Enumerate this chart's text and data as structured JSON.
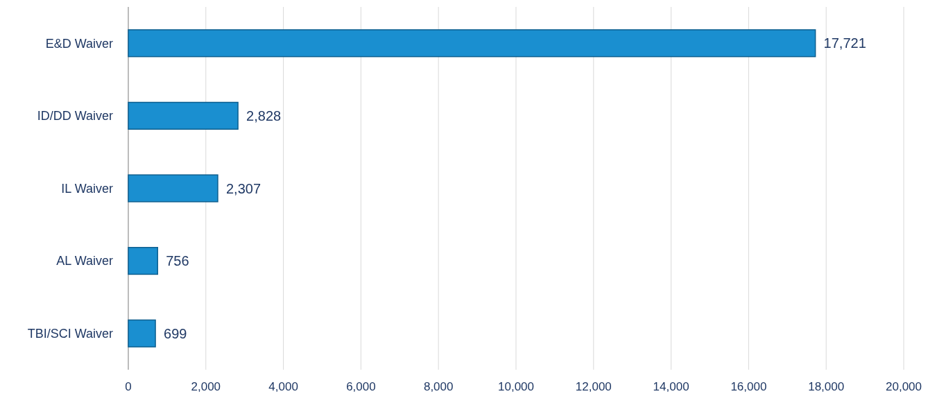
{
  "chart_data": {
    "type": "bar",
    "orientation": "horizontal",
    "categories": [
      "E&D Waiver",
      "ID/DD Waiver",
      "IL Waiver",
      "AL Waiver",
      "TBI/SCI Waiver"
    ],
    "values": [
      17721,
      2828,
      2307,
      756,
      699
    ],
    "color": "#1a8fd0",
    "xlim": [
      0,
      20000
    ],
    "xticks": [
      {
        "value": 0,
        "label": "0"
      },
      {
        "value": 2000,
        "label": "2,000"
      },
      {
        "value": 4000,
        "label": "4,000"
      },
      {
        "value": 6000,
        "label": "6,000"
      },
      {
        "value": 8000,
        "label": "8,000"
      },
      {
        "value": 10000,
        "label": "10,000"
      },
      {
        "value": 12000,
        "label": "12,000"
      },
      {
        "value": 14000,
        "label": "14,000"
      },
      {
        "value": 16000,
        "label": "16,000"
      },
      {
        "value": 18000,
        "label": "18,000"
      },
      {
        "value": 20000,
        "label": "20,000"
      }
    ],
    "value_labels": [
      "17,721",
      "2,828",
      "2,307",
      "756",
      "699"
    ],
    "grid": "x"
  }
}
